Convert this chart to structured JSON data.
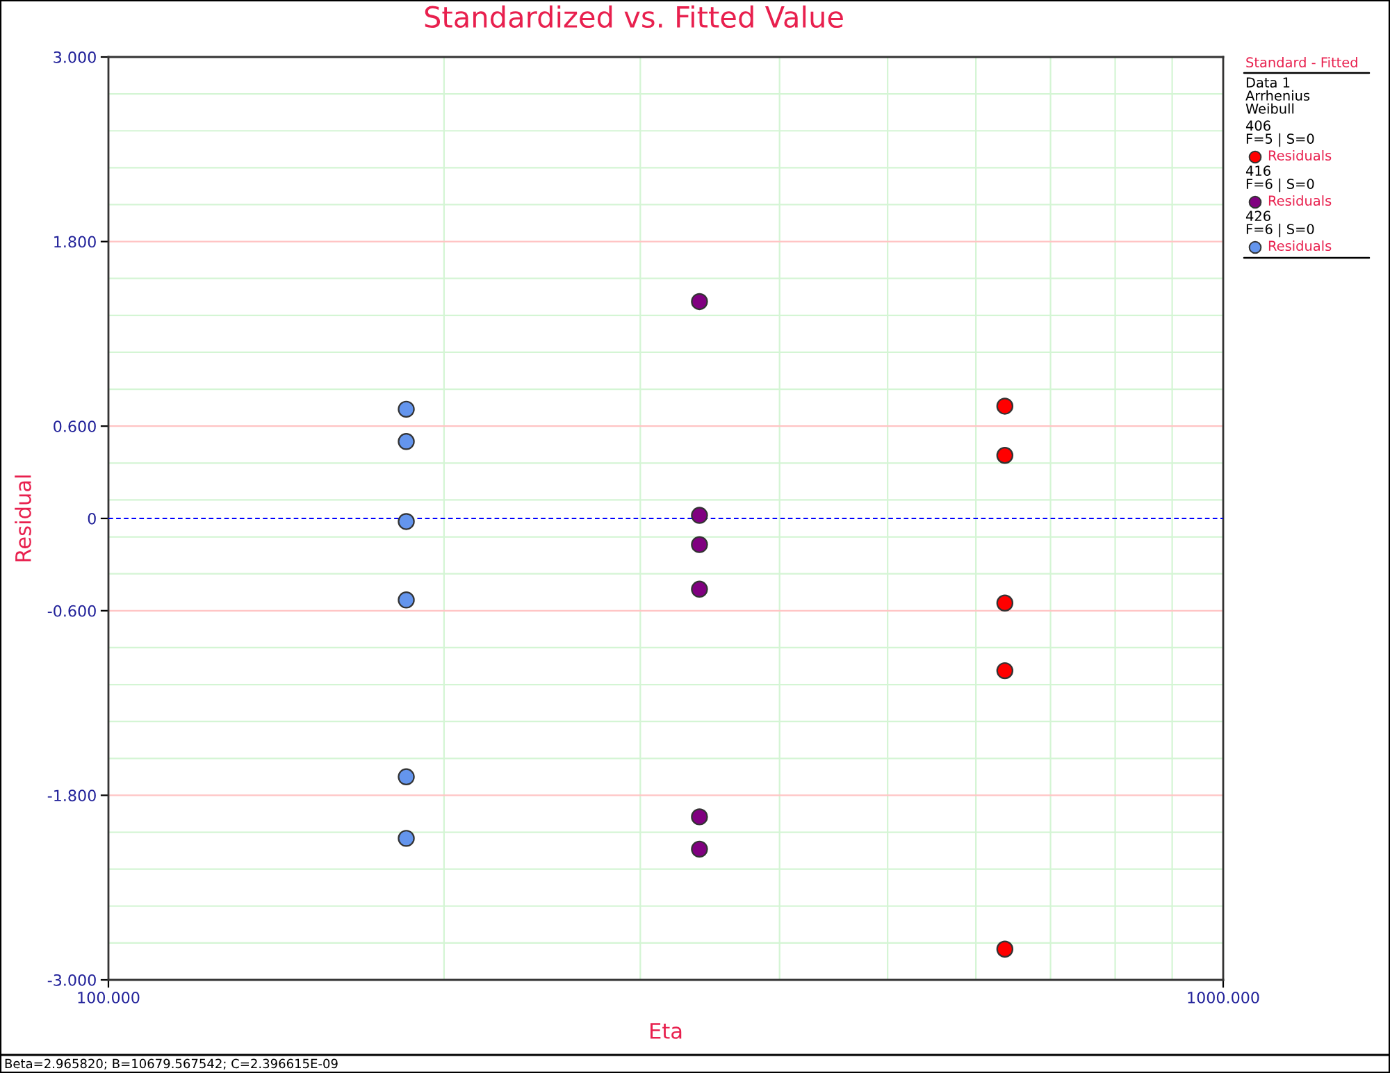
{
  "chart_data": {
    "type": "scatter",
    "title": "Standardized vs. Fitted Value",
    "xlabel": "Eta",
    "ylabel": "Residual",
    "legend_title": "Standard - Fitted",
    "annotations": [
      "Data 1\nArrhenius\nWeibull",
      "406\nF=5 | S=0",
      "416\nF=6 | S=0",
      "426\nF=6 | S=0",
      "Beta=2.965820; B=10679.567542; C=2.396615E-09"
    ],
    "series": [
      {
        "name": "Residuals",
        "color": "#ff0000",
        "x": [
          637,
          637,
          637,
          637,
          637
        ],
        "values": [
          0.73,
          0.41,
          -0.55,
          -0.99,
          -2.8
        ]
      },
      {
        "name": "Residuals",
        "color": "#800080",
        "x": [
          339,
          339,
          339,
          339,
          339,
          339
        ],
        "values": [
          1.41,
          0.02,
          -0.17,
          -0.46,
          -1.94,
          -2.15
        ]
      },
      {
        "name": "Residuals",
        "color": "#6495ed",
        "x": [
          185,
          185,
          185,
          185,
          185,
          185
        ],
        "values": [
          0.71,
          0.5,
          -0.02,
          -0.53,
          -1.68,
          -2.08
        ]
      }
    ],
    "log": "x",
    "xlim": [
      100,
      1000
    ],
    "xticks": [
      {
        "value": 100,
        "label": "100.000"
      },
      {
        "value": 200,
        "label": null
      },
      {
        "value": 300,
        "label": null
      },
      {
        "value": 400,
        "label": null
      },
      {
        "value": 500,
        "label": null
      },
      {
        "value": 600,
        "label": null
      },
      {
        "value": 700,
        "label": null
      },
      {
        "value": 800,
        "label": null
      },
      {
        "value": 900,
        "label": null
      },
      {
        "value": 1000,
        "label": "1000.000"
      }
    ],
    "ylim": [
      -3,
      3
    ],
    "yticks": [
      {
        "value": -3,
        "label": "-3.000"
      },
      {
        "value": -2.76,
        "label": null
      },
      {
        "value": -2.52,
        "label": null
      },
      {
        "value": -2.28,
        "label": null
      },
      {
        "value": -2.04,
        "label": null
      },
      {
        "value": -1.8,
        "label": "-1.800"
      },
      {
        "value": -1.56,
        "label": null
      },
      {
        "value": -1.32,
        "label": null
      },
      {
        "value": -1.08,
        "label": null
      },
      {
        "value": -0.84,
        "label": null
      },
      {
        "value": -0.6,
        "label": "-0.600"
      },
      {
        "value": -0.36,
        "label": null
      },
      {
        "value": -0.12,
        "label": null
      },
      0,
      {
        "value": 0.12,
        "label": null
      },
      {
        "value": 0.36,
        "label": null
      },
      {
        "value": 0.6,
        "label": "0.600"
      },
      {
        "value": 0.84,
        "label": null
      },
      {
        "value": 1.08,
        "label": null
      },
      {
        "value": 1.32,
        "label": null
      },
      {
        "value": 1.56,
        "label": null
      },
      {
        "value": 1.8,
        "label": "1.800"
      },
      {
        "value": 2.04,
        "label": null
      },
      {
        "value": 2.28,
        "label": null
      },
      {
        "value": 2.52,
        "label": null
      },
      {
        "value": 2.76,
        "label": null
      },
      {
        "value": 3,
        "label": "3.000"
      }
    ],
    "grid": true,
    "marker": "circle",
    "legend": "right",
    "ref_lines": [
      {
        "axis": "y",
        "value": 0,
        "color": "#0000ff",
        "line_style": "dashed"
      }
    ]
  }
}
